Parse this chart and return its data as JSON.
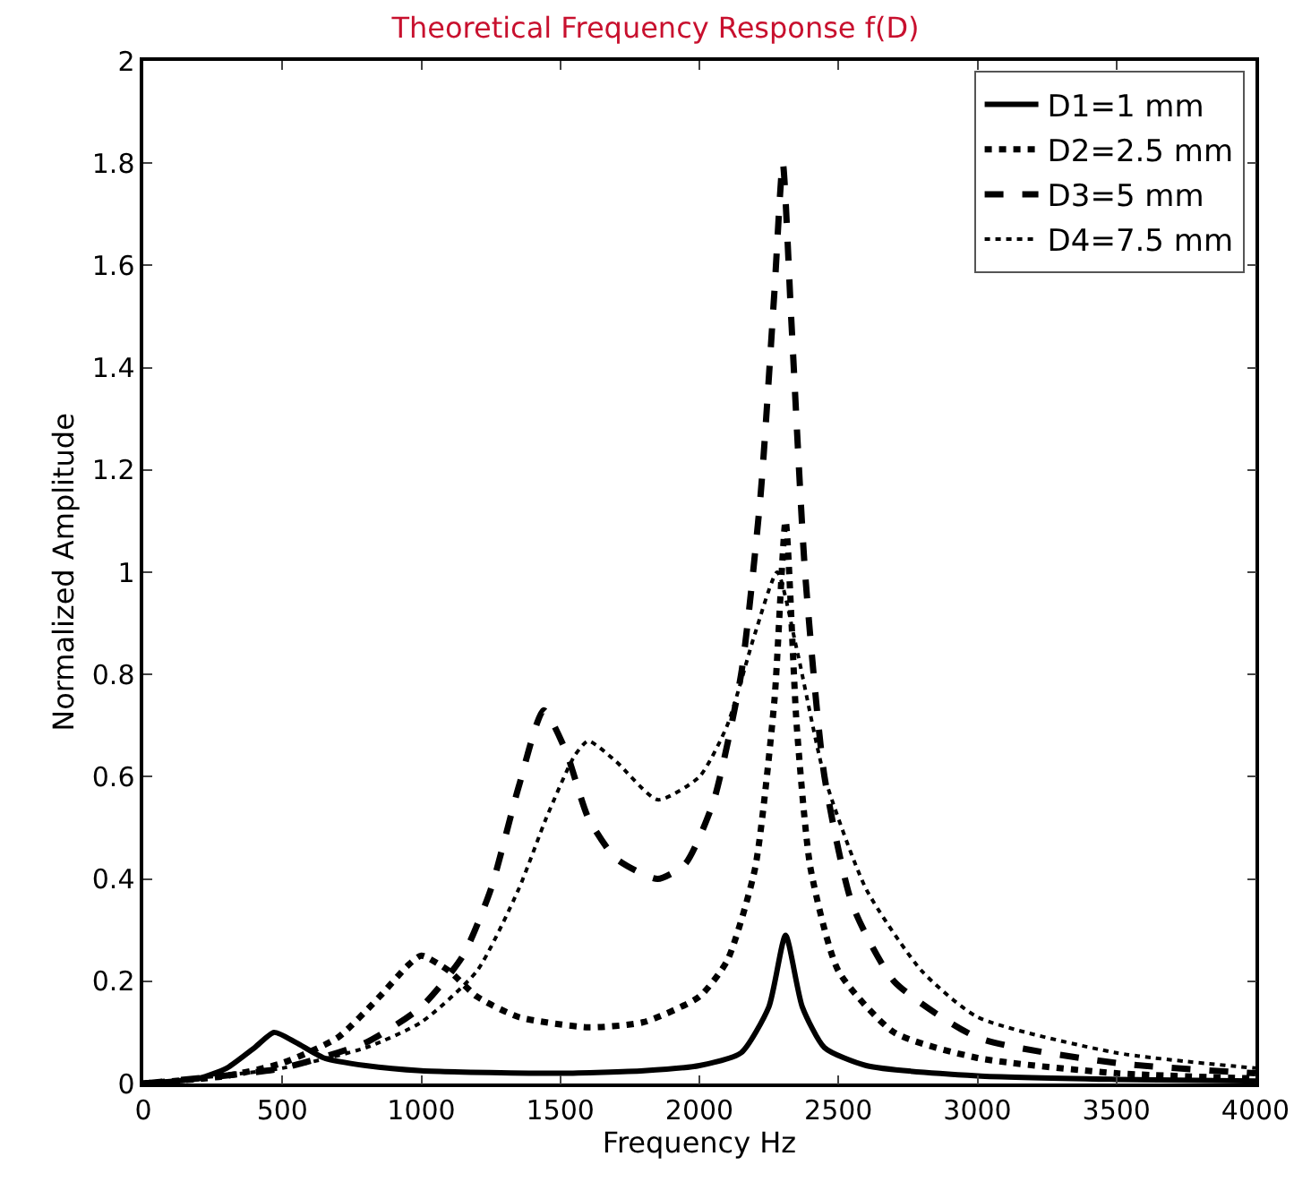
{
  "chart_data": {
    "type": "line",
    "title": "Theoretical Frequency Response f(D)",
    "xlabel": "Frequency Hz",
    "ylabel": "Normalized Amplitude",
    "xlim": [
      0,
      4000
    ],
    "xticks": [
      0,
      500,
      1000,
      1500,
      2000,
      2500,
      3000,
      3500,
      4000
    ],
    "ylim": [
      0,
      2
    ],
    "yticks": [
      0,
      0.2,
      0.4,
      0.6,
      0.8,
      1,
      1.2,
      1.4,
      1.6,
      1.8,
      2
    ],
    "grid": false,
    "legend": "top right",
    "marker": "none",
    "series": [
      {
        "name": "D1=1 mm",
        "color": "#000000",
        "line_style": "solid",
        "x": [
          0,
          200,
          300,
          400,
          470,
          550,
          650,
          800,
          1000,
          1500,
          1800,
          2000,
          2150,
          2250,
          2310,
          2370,
          2450,
          2600,
          3000,
          3500,
          4000
        ],
        "values": [
          0,
          0.01,
          0.03,
          0.07,
          0.1,
          0.08,
          0.05,
          0.035,
          0.025,
          0.02,
          0.025,
          0.035,
          0.06,
          0.15,
          0.29,
          0.15,
          0.07,
          0.035,
          0.015,
          0.008,
          0.005
        ]
      },
      {
        "name": "D2=2.5 mm",
        "color": "#000000",
        "line_style": "dotted",
        "x": [
          0,
          300,
          500,
          700,
          850,
          950,
          1000,
          1100,
          1200,
          1350,
          1600,
          1800,
          2000,
          2100,
          2200,
          2270,
          2310,
          2350,
          2400,
          2500,
          2700,
          3000,
          3500,
          4000
        ],
        "values": [
          0,
          0.015,
          0.04,
          0.09,
          0.17,
          0.23,
          0.25,
          0.22,
          0.17,
          0.13,
          0.11,
          0.12,
          0.17,
          0.24,
          0.42,
          0.75,
          1.1,
          0.7,
          0.42,
          0.22,
          0.1,
          0.05,
          0.02,
          0.01
        ]
      },
      {
        "name": "D3=5 mm",
        "color": "#000000",
        "line_style": "dashed",
        "x": [
          0,
          500,
          800,
          1000,
          1150,
          1250,
          1350,
          1440,
          1520,
          1600,
          1700,
          1850,
          1950,
          2050,
          2150,
          2220,
          2270,
          2300,
          2330,
          2380,
          2450,
          2550,
          2700,
          3000,
          3500,
          4000
        ],
        "values": [
          0,
          0.03,
          0.08,
          0.15,
          0.25,
          0.38,
          0.58,
          0.73,
          0.65,
          0.52,
          0.44,
          0.4,
          0.43,
          0.55,
          0.8,
          1.15,
          1.55,
          1.8,
          1.5,
          1.0,
          0.6,
          0.35,
          0.2,
          0.09,
          0.04,
          0.02
        ]
      },
      {
        "name": "D4=7.5 mm",
        "color": "#000000",
        "line_style": "dotted",
        "x": [
          0,
          500,
          800,
          1000,
          1200,
          1350,
          1450,
          1550,
          1600,
          1700,
          1850,
          2000,
          2100,
          2200,
          2280,
          2350,
          2450,
          2600,
          2800,
          3000,
          3500,
          4000
        ],
        "values": [
          0,
          0.03,
          0.07,
          0.12,
          0.22,
          0.38,
          0.52,
          0.64,
          0.67,
          0.63,
          0.555,
          0.6,
          0.7,
          0.88,
          1.0,
          0.85,
          0.6,
          0.38,
          0.22,
          0.13,
          0.06,
          0.03
        ]
      }
    ]
  }
}
